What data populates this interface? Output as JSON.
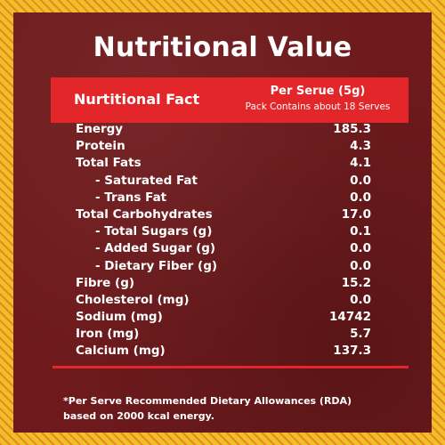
{
  "title": "Nutritional Value",
  "header": {
    "left": "Nurtitional Fact",
    "per_serve": "Per Serue  (5g)",
    "pack_contains": "Pack Contains about 18 Serves"
  },
  "rows": [
    {
      "label": "Energy",
      "value": "185.3",
      "indent": false
    },
    {
      "label": "Protein",
      "value": "4.3",
      "indent": false
    },
    {
      "label": "Total Fats",
      "value": "4.1",
      "indent": false
    },
    {
      "label": "- Saturated Fat",
      "value": "0.0",
      "indent": true
    },
    {
      "label": "- Trans Fat",
      "value": "0.0",
      "indent": true
    },
    {
      "label": "Total Carbohydrates",
      "value": "17.0",
      "indent": false
    },
    {
      "label": "- Total Sugars (g)",
      "value": "0.1",
      "indent": true
    },
    {
      "label": "- Added Sugar (g)",
      "value": "0.0",
      "indent": true
    },
    {
      "label": "- Dietary Fiber (g)",
      "value": "0.0",
      "indent": true
    },
    {
      "label": "Fibre (g)",
      "value": "15.2",
      "indent": false
    },
    {
      "label": "Cholesterol (mg)",
      "value": "0.0",
      "indent": false
    },
    {
      "label": "Sodium (mg)",
      "value": "14742",
      "indent": false
    },
    {
      "label": "Iron (mg)",
      "value": "5.7",
      "indent": false
    },
    {
      "label": "Calcium (mg)",
      "value": "137.3",
      "indent": false
    }
  ],
  "footnote": {
    "line1": "*Per Serve Recommended Dietary Allowances (RDA)",
    "line2": "based on 2000 kcal energy."
  },
  "colors": {
    "panel": "#6e1a1c",
    "accent_red": "#e3262a",
    "border_yellow": "#f1be27",
    "text": "#ffffff"
  }
}
